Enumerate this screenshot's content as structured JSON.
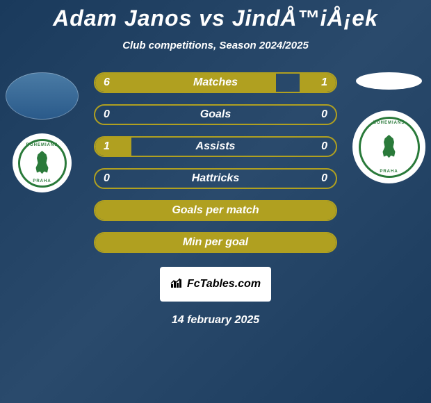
{
  "title": "Adam Janos vs JindÅ™iÅ¡ek",
  "subtitle": "Club competitions, Season 2024/2025",
  "date": "14 february 2025",
  "branding": "FcTables.com",
  "team_logo": {
    "text_top": "BOHEMIANS",
    "text_bottom": "PRAHA",
    "border_color": "#2a7a3a",
    "bg_color": "#ffffff"
  },
  "stats": [
    {
      "label": "Matches",
      "left_value": "6",
      "right_value": "1",
      "left_pct": 75,
      "right_pct": 15
    },
    {
      "label": "Goals",
      "left_value": "0",
      "right_value": "0",
      "left_pct": 0,
      "right_pct": 0
    },
    {
      "label": "Assists",
      "left_value": "1",
      "right_value": "0",
      "left_pct": 15,
      "right_pct": 0
    },
    {
      "label": "Hattricks",
      "left_value": "0",
      "right_value": "0",
      "left_pct": 0,
      "right_pct": 0
    },
    {
      "label": "Goals per match",
      "left_value": "",
      "right_value": "",
      "left_pct": 100,
      "right_pct": 0
    },
    {
      "label": "Min per goal",
      "left_value": "",
      "right_value": "",
      "left_pct": 100,
      "right_pct": 0
    }
  ],
  "colors": {
    "bar_border": "#b0a020",
    "bar_fill": "#b0a020",
    "text": "#ffffff",
    "background_gradient_start": "#1a3a5c",
    "background_gradient_end": "#2a4a6c"
  }
}
